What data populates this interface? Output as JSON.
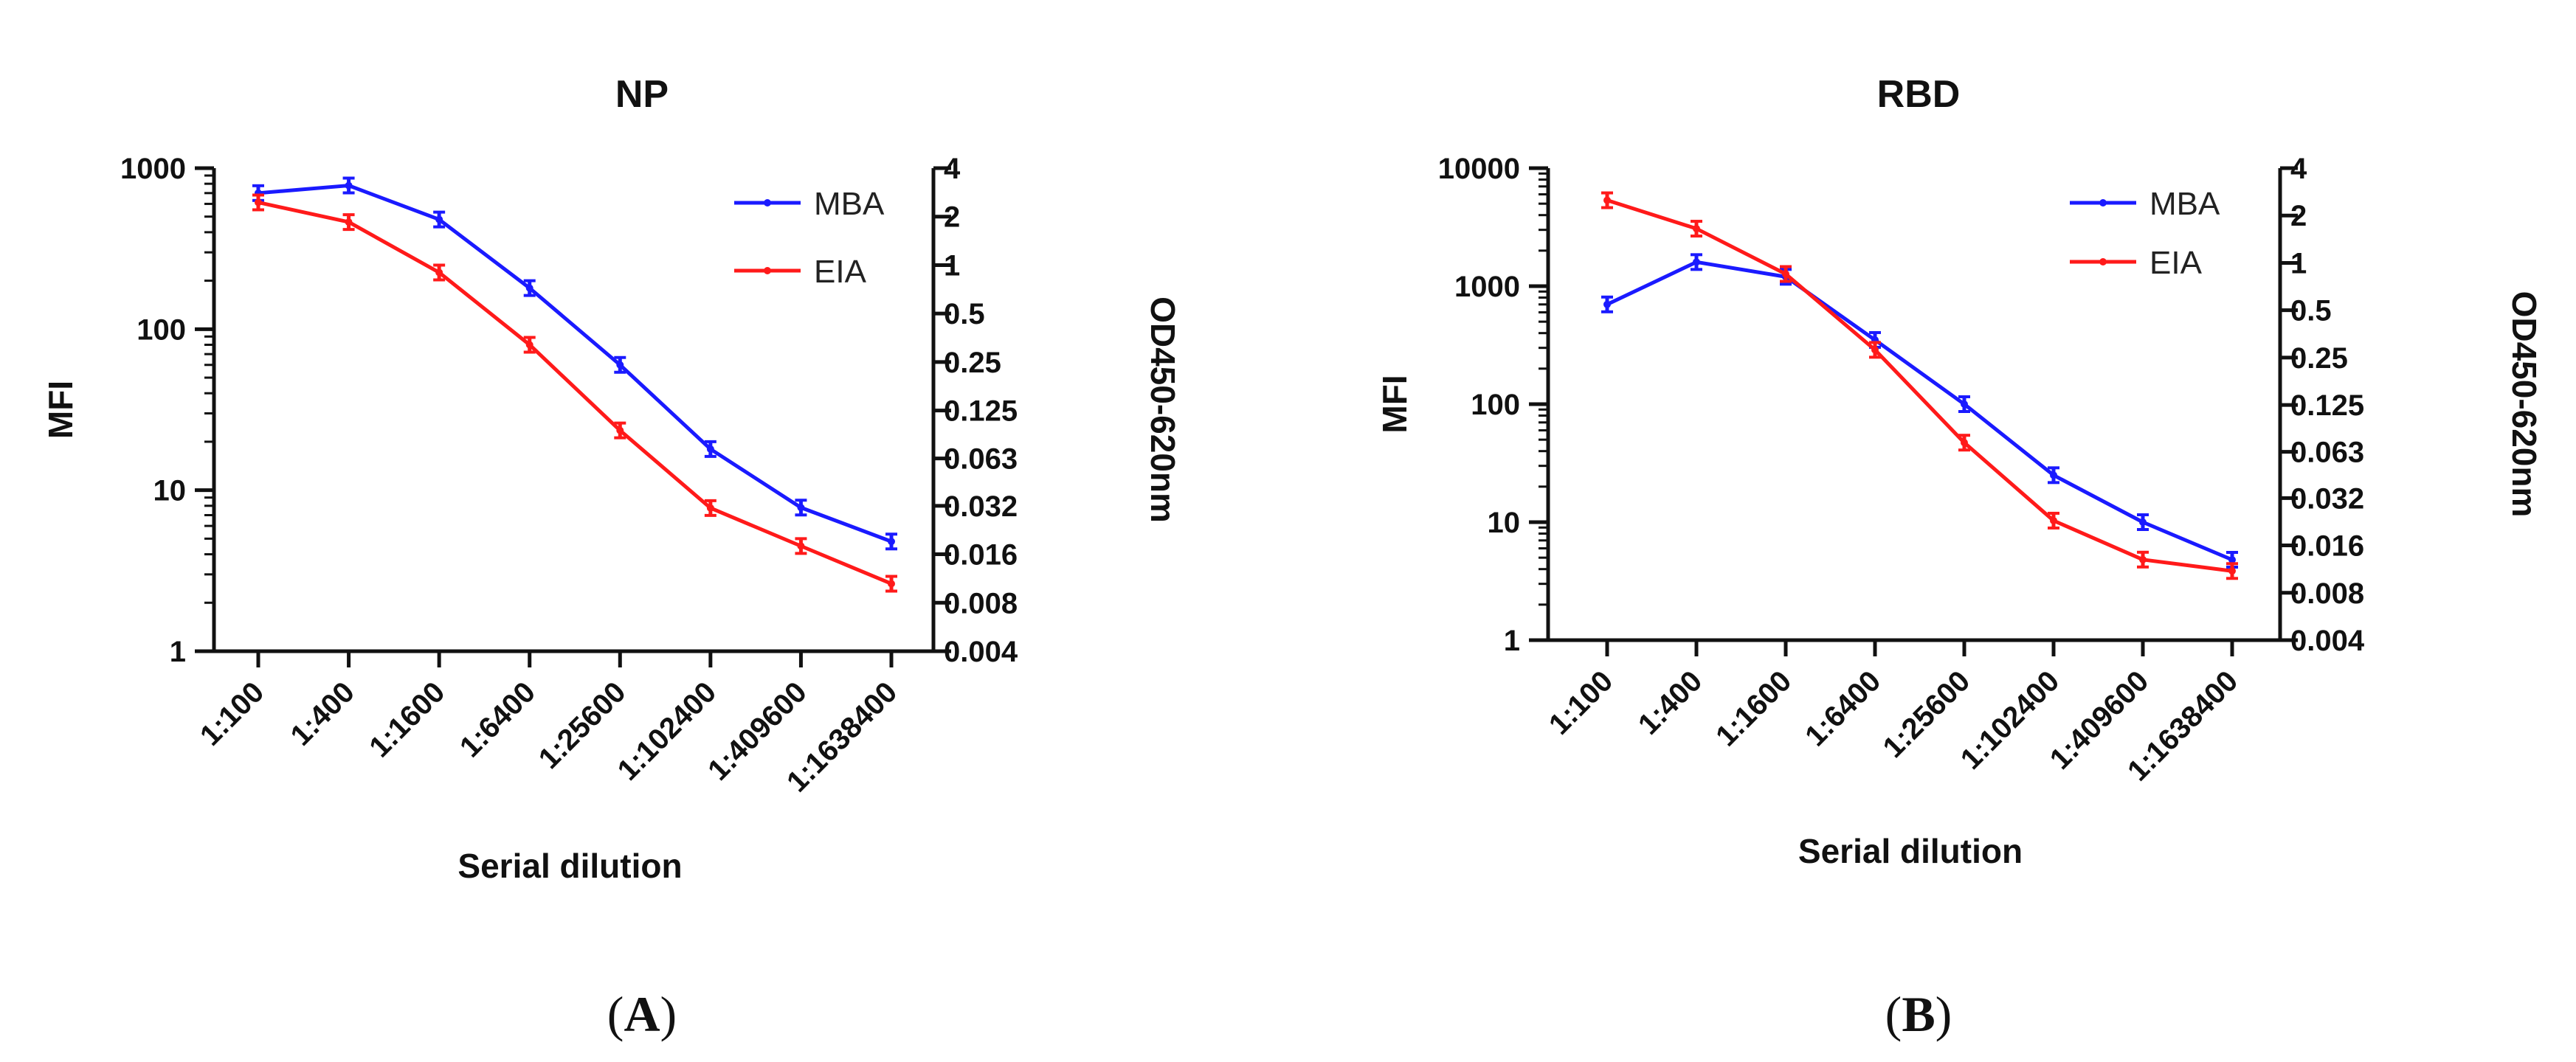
{
  "chart_data": [
    {
      "type": "line",
      "title": "NP",
      "panel_label": "A",
      "xlabel": "Serial dilution",
      "ylabel": "MFI",
      "y2label": "OD450-620nm",
      "categories": [
        "1:100",
        "1:400",
        "1:1600",
        "1:6400",
        "1:25600",
        "1:102400",
        "1:409600",
        "1:1638400"
      ],
      "y_scale": "log",
      "ylim": [
        1,
        1000
      ],
      "y_ticks": [
        "1",
        "10",
        "100",
        "1000"
      ],
      "y2_scale": "log2",
      "y2lim": [
        0.004,
        4
      ],
      "y2_ticks": [
        "0.004",
        "0.008",
        "0.016",
        "0.032",
        "0.063",
        "0.125",
        "0.25",
        "0.5",
        "1",
        "2",
        "4"
      ],
      "legend": [
        "MBA",
        "EIA"
      ],
      "legend_position": "top-right",
      "series": [
        {
          "name": "MBA",
          "axis": "left",
          "color": "#1a1aff",
          "values": [
            700,
            780,
            480,
            180,
            60,
            18,
            7.8,
            4.8
          ]
        },
        {
          "name": "EIA",
          "axis": "right",
          "color": "#ff1a1a",
          "values": [
            2.45,
            1.85,
            0.9,
            0.32,
            0.094,
            0.031,
            0.018,
            0.0105
          ]
        }
      ]
    },
    {
      "type": "line",
      "title": "RBD",
      "panel_label": "B",
      "xlabel": "Serial dilution",
      "ylabel": "MFI",
      "y2label": "OD450-620nm",
      "categories": [
        "1:100",
        "1:400",
        "1:1600",
        "1:6400",
        "1:25600",
        "1:102400",
        "1:409600",
        "1:1638400"
      ],
      "y_scale": "log",
      "ylim": [
        1,
        10000
      ],
      "y_ticks": [
        "1",
        "10",
        "100",
        "1000",
        "10000"
      ],
      "y2_scale": "log2",
      "y2lim": [
        0.004,
        4
      ],
      "y2_ticks": [
        "0.004",
        "0.008",
        "0.016",
        "0.032",
        "0.063",
        "0.125",
        "0.25",
        "0.5",
        "1",
        "2",
        "4"
      ],
      "legend": [
        "MBA",
        "EIA"
      ],
      "legend_position": "top-right",
      "series": [
        {
          "name": "MBA",
          "axis": "left",
          "color": "#1a1aff",
          "values": [
            700,
            1600,
            1200,
            350,
            100,
            25,
            10,
            4.8
          ]
        },
        {
          "name": "EIA",
          "axis": "right",
          "color": "#ff1a1a",
          "values": [
            2.5,
            1.65,
            0.85,
            0.28,
            0.072,
            0.023,
            0.013,
            0.011
          ]
        }
      ]
    }
  ]
}
